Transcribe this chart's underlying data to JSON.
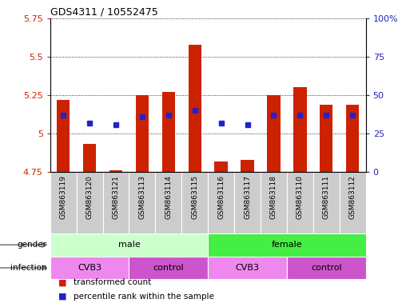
{
  "title": "GDS4311 / 10552475",
  "samples": [
    "GSM863119",
    "GSM863120",
    "GSM863121",
    "GSM863113",
    "GSM863114",
    "GSM863115",
    "GSM863116",
    "GSM863117",
    "GSM863118",
    "GSM863110",
    "GSM863111",
    "GSM863112"
  ],
  "red_values": [
    5.22,
    4.93,
    4.76,
    5.25,
    5.27,
    5.58,
    4.82,
    4.83,
    5.25,
    5.3,
    5.19,
    5.19
  ],
  "blue_values": [
    5.12,
    5.07,
    5.06,
    5.11,
    5.12,
    5.15,
    5.07,
    5.06,
    5.12,
    5.12,
    5.12,
    5.12
  ],
  "ylim_left": [
    4.75,
    5.75
  ],
  "ylim_right": [
    0,
    100
  ],
  "yticks_left": [
    4.75,
    5.0,
    5.25,
    5.5,
    5.75
  ],
  "ytick_labels_left": [
    "4.75",
    "5",
    "5.25",
    "5.5",
    "5.75"
  ],
  "yticks_right": [
    0,
    25,
    50,
    75,
    100
  ],
  "ytick_labels_right": [
    "0",
    "25",
    "50",
    "75",
    "100%"
  ],
  "bar_bottom": 4.75,
  "bar_color": "#cc2200",
  "blue_color": "#2222cc",
  "gender_groups": [
    {
      "label": "male",
      "start": 0,
      "end": 6,
      "color": "#ccffcc"
    },
    {
      "label": "female",
      "start": 6,
      "end": 12,
      "color": "#44ee44"
    }
  ],
  "infection_groups": [
    {
      "label": "CVB3",
      "start": 0,
      "end": 3,
      "color": "#ee88ee"
    },
    {
      "label": "control",
      "start": 3,
      "end": 6,
      "color": "#cc55cc"
    },
    {
      "label": "CVB3",
      "start": 6,
      "end": 9,
      "color": "#ee88ee"
    },
    {
      "label": "control",
      "start": 9,
      "end": 12,
      "color": "#cc55cc"
    }
  ],
  "legend_items": [
    {
      "label": "transformed count",
      "color": "#cc2200"
    },
    {
      "label": "percentile rank within the sample",
      "color": "#2222cc"
    }
  ],
  "axis_color_left": "#cc2200",
  "axis_color_right": "#2222bb",
  "sample_box_color": "#cccccc",
  "bar_width": 0.5
}
